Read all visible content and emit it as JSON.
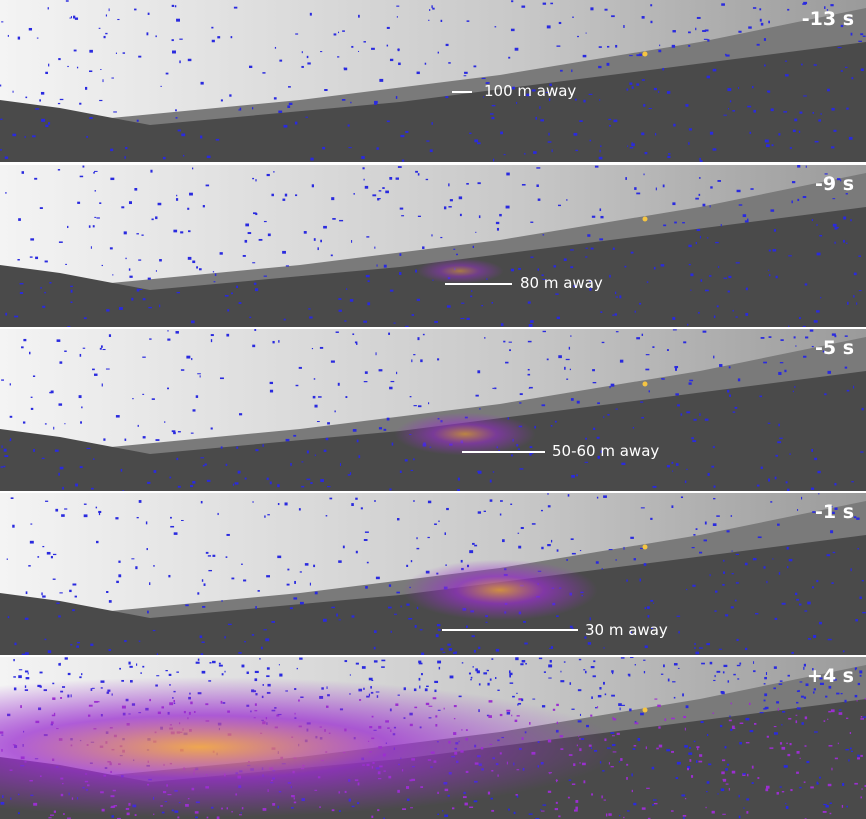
{
  "panels": [
    {
      "time": "-13 s",
      "distance": "100 m away",
      "plume": 0
    },
    {
      "time": "-9 s",
      "distance": "80 m away",
      "plume": 0.15
    },
    {
      "time": "-5 s",
      "distance": "50-60 m away",
      "plume": 0.45
    },
    {
      "time": "-1 s",
      "distance": "30 m away",
      "plume": 0.75
    },
    {
      "time": "+4 s",
      "plume": 1
    }
  ],
  "colors": {
    "speckle": "#2a2adf",
    "plume_purple": "#9b2fd0",
    "plume_orange": "#f0a040",
    "sky": "#eeeeee",
    "ground": "#4a4a4a"
  }
}
